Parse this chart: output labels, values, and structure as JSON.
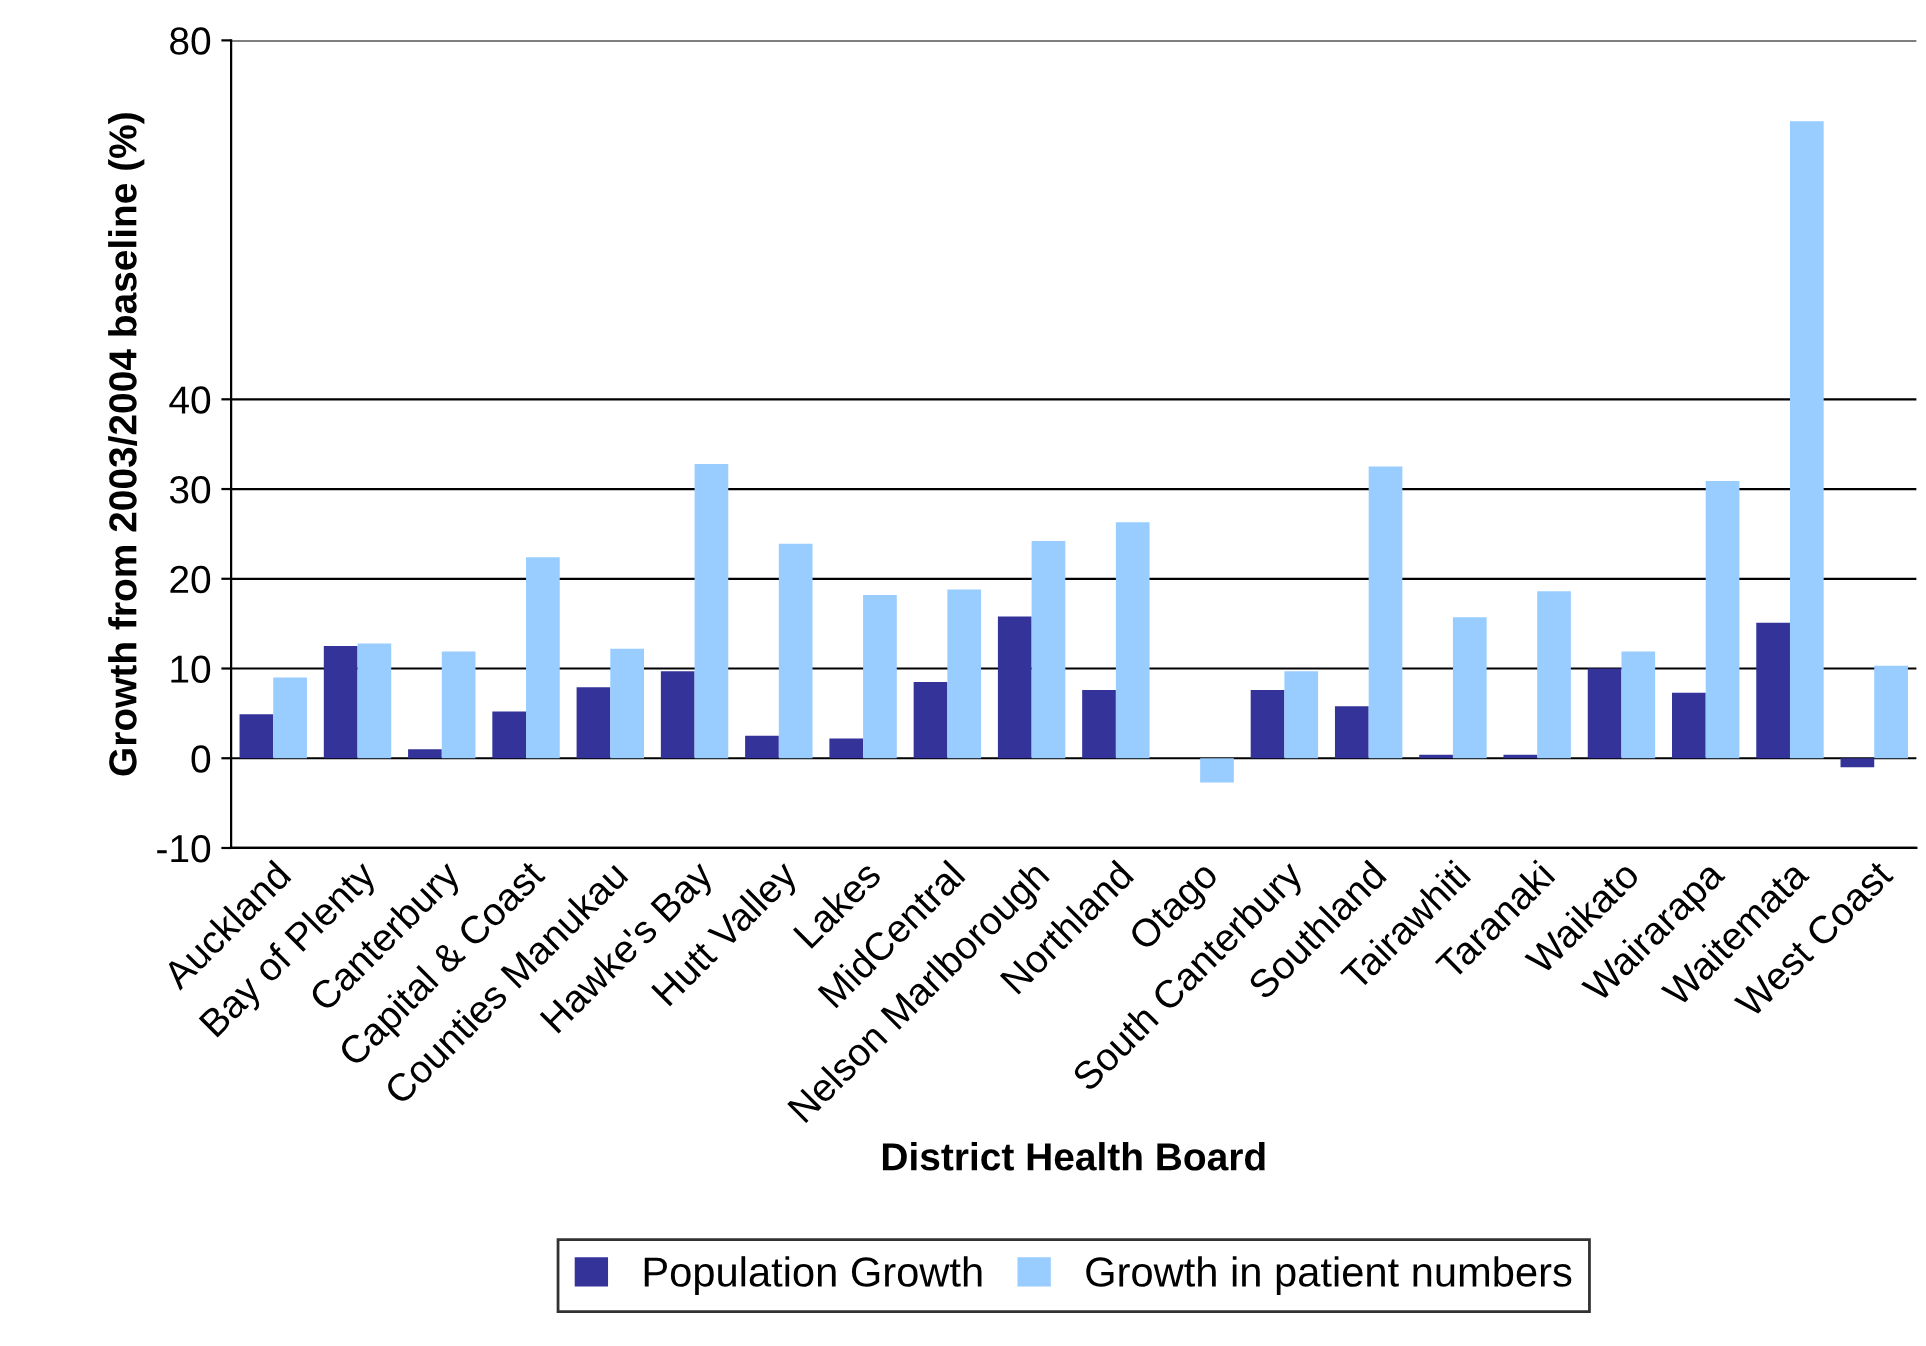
{
  "chart_data": {
    "type": "bar",
    "xlabel": "District Health Board",
    "ylabel": "Growth from 2003/2004 baseline (%)",
    "categories": [
      "Auckland",
      "Bay of Plenty",
      "Canterbury",
      "Capital & Coast",
      "Counties Manukau",
      "Hawke's Bay",
      "Hutt Valley",
      "Lakes",
      "MidCentral",
      "Nelson Marlborough",
      "Northland",
      "Otago",
      "South Canterbury",
      "Southland",
      "Tairawhiti",
      "Taranaki",
      "Waikato",
      "Wairarapa",
      "Waitemata",
      "West Coast"
    ],
    "series": [
      {
        "name": "Population Growth",
        "color": "#333399",
        "values": [
          4.9,
          12.5,
          1.0,
          5.2,
          7.9,
          9.7,
          2.5,
          2.2,
          8.5,
          15.8,
          7.6,
          null,
          7.6,
          5.8,
          0.4,
          0.4,
          10.0,
          7.3,
          15.1,
          -1.0
        ]
      },
      {
        "name": "Growth in patient numbers",
        "color": "#99ccff",
        "values": [
          9.0,
          12.8,
          11.9,
          22.4,
          12.2,
          32.8,
          23.9,
          18.2,
          18.8,
          24.2,
          26.3,
          -2.7,
          9.7,
          32.5,
          15.7,
          18.6,
          11.9,
          30.9,
          71,
          10.3
        ]
      }
    ],
    "ylim": [
      -10,
      80
    ],
    "yticks": [
      -10,
      0,
      10,
      20,
      30,
      40,
      80
    ],
    "grid": "y",
    "legend": "bottom"
  }
}
